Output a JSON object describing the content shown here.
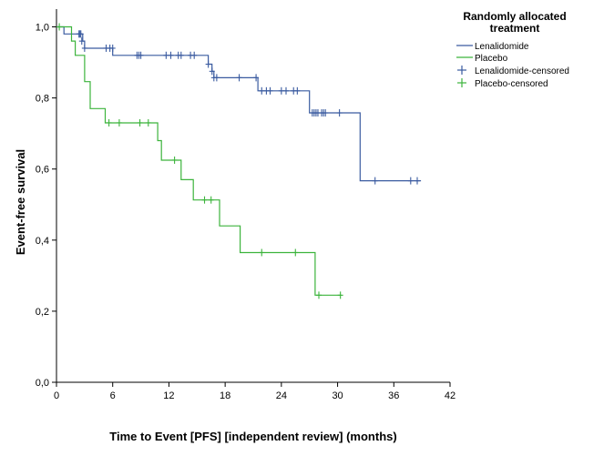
{
  "chart_data": {
    "type": "line",
    "subtype": "kaplan-meier step",
    "xlabel": "Time to Event [PFS] [independent review] (months)",
    "ylabel": "Event-free survival",
    "xlim": [
      0,
      42
    ],
    "ylim": [
      0,
      1.05
    ],
    "xticks": [
      0,
      6,
      12,
      18,
      24,
      30,
      36,
      42
    ],
    "xtick_labels": [
      "0",
      "6",
      "12",
      "18",
      "24",
      "30",
      "36",
      "42"
    ],
    "yticks": [
      0.0,
      0.2,
      0.4,
      0.6,
      0.8,
      1.0
    ],
    "ytick_labels": [
      "0,0",
      "0,2",
      "0,4",
      "0,6",
      "0,8",
      "1,0"
    ],
    "grid": false,
    "legend": {
      "title_lines": [
        "Randomly allocated",
        "treatment"
      ],
      "placement": "top-right",
      "entries": [
        "Lenalidomide",
        "Placebo",
        "Lenalidomide-censored",
        "Placebo-censored"
      ]
    },
    "series": [
      {
        "name": "Lenalidomide",
        "color": "#3a5ba0",
        "steps": [
          [
            0,
            1.0
          ],
          [
            0.8,
            0.98
          ],
          [
            2.5,
            0.98
          ],
          [
            2.8,
            0.96
          ],
          [
            3.0,
            0.94
          ],
          [
            6.0,
            0.92
          ],
          [
            15.8,
            0.92
          ],
          [
            16.2,
            0.895
          ],
          [
            16.6,
            0.875
          ],
          [
            16.8,
            0.857
          ],
          [
            21.5,
            0.82
          ],
          [
            27.0,
            0.758
          ],
          [
            32.3,
            0.758
          ],
          [
            32.4,
            0.567
          ],
          [
            38.9,
            0.567
          ]
        ],
        "censored": [
          [
            2.4,
            0.98
          ],
          [
            2.5,
            0.98
          ],
          [
            2.6,
            0.98
          ],
          [
            2.7,
            0.96
          ],
          [
            3.0,
            0.94
          ],
          [
            5.3,
            0.94
          ],
          [
            5.7,
            0.94
          ],
          [
            6.0,
            0.94
          ],
          [
            8.6,
            0.92
          ],
          [
            8.8,
            0.92
          ],
          [
            9.0,
            0.92
          ],
          [
            11.7,
            0.92
          ],
          [
            12.2,
            0.92
          ],
          [
            13.0,
            0.92
          ],
          [
            13.3,
            0.92
          ],
          [
            14.3,
            0.92
          ],
          [
            14.7,
            0.92
          ],
          [
            16.2,
            0.895
          ],
          [
            16.6,
            0.875
          ],
          [
            16.8,
            0.857
          ],
          [
            17.1,
            0.857
          ],
          [
            19.5,
            0.857
          ],
          [
            21.3,
            0.857
          ],
          [
            21.9,
            0.82
          ],
          [
            22.4,
            0.82
          ],
          [
            22.8,
            0.82
          ],
          [
            24.0,
            0.82
          ],
          [
            24.5,
            0.82
          ],
          [
            25.3,
            0.82
          ],
          [
            25.7,
            0.82
          ],
          [
            27.3,
            0.758
          ],
          [
            27.5,
            0.758
          ],
          [
            27.7,
            0.758
          ],
          [
            27.9,
            0.758
          ],
          [
            28.3,
            0.758
          ],
          [
            28.5,
            0.758
          ],
          [
            28.7,
            0.758
          ],
          [
            30.2,
            0.758
          ],
          [
            34.0,
            0.567
          ],
          [
            37.8,
            0.567
          ],
          [
            38.5,
            0.567
          ]
        ]
      },
      {
        "name": "Placebo",
        "color": "#3cb43c",
        "steps": [
          [
            0,
            1.0
          ],
          [
            1.6,
            0.96
          ],
          [
            2.0,
            0.92
          ],
          [
            3.0,
            0.846
          ],
          [
            3.6,
            0.77
          ],
          [
            5.2,
            0.73
          ],
          [
            10.4,
            0.73
          ],
          [
            10.8,
            0.68
          ],
          [
            11.2,
            0.625
          ],
          [
            13.3,
            0.57
          ],
          [
            14.6,
            0.513
          ],
          [
            17.4,
            0.44
          ],
          [
            19.6,
            0.365
          ],
          [
            27.6,
            0.245
          ],
          [
            30.4,
            0.245
          ]
        ],
        "censored": [
          [
            0.3,
            1.0
          ],
          [
            5.6,
            0.73
          ],
          [
            6.7,
            0.73
          ],
          [
            8.9,
            0.73
          ],
          [
            9.8,
            0.73
          ],
          [
            12.6,
            0.625
          ],
          [
            15.8,
            0.513
          ],
          [
            16.5,
            0.513
          ],
          [
            21.9,
            0.365
          ],
          [
            25.5,
            0.365
          ],
          [
            28.0,
            0.245
          ],
          [
            30.3,
            0.245
          ]
        ]
      }
    ]
  }
}
